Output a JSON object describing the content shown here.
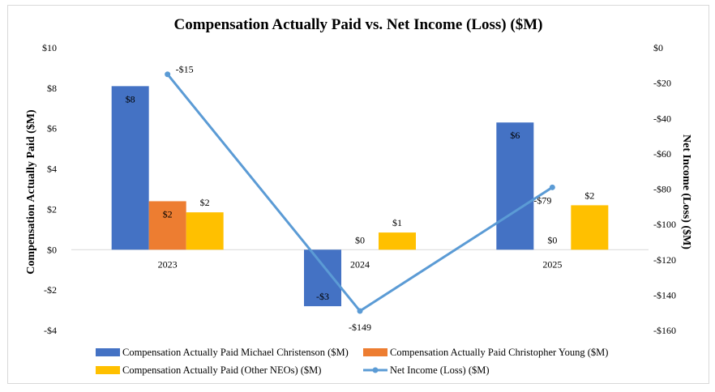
{
  "chart_data": {
    "type": "bar",
    "title": "Compensation Actually Paid vs. Net Income (Loss) ($M)",
    "categories": [
      "2023",
      "2024",
      "2025"
    ],
    "ylabel": "Compensation Actually Paid ($M)",
    "y2label": "Net Income (Loss) ($M)",
    "ylim": [
      -4,
      10
    ],
    "yticks": [
      10,
      8,
      6,
      4,
      2,
      0,
      -2,
      -4
    ],
    "ytick_labels": [
      "$10",
      "$8",
      "$6",
      "$4",
      "$2",
      "$0",
      "-$2",
      "-$4"
    ],
    "y2lim": [
      -160,
      0
    ],
    "y2ticks": [
      0,
      -20,
      -40,
      -60,
      -80,
      -100,
      -120,
      -140,
      -160
    ],
    "y2tick_labels": [
      "$0",
      "-$20",
      "-$40",
      "-$60",
      "-$80",
      "-$100",
      "-$120",
      "-$140",
      "-$160"
    ],
    "series": [
      {
        "name": "Compensation Actually Paid Michael Christenson ($M)",
        "kind": "bar",
        "axis": "left",
        "color": "#4472c4",
        "values": [
          8.1,
          -2.8,
          6.3
        ],
        "labels": [
          "$8",
          "-$3",
          "$6"
        ]
      },
      {
        "name": "Compensation Actually Paid Christopher Young ($M)",
        "kind": "bar",
        "axis": "left",
        "color": "#ed7d31",
        "values": [
          2.4,
          0,
          0
        ],
        "labels": [
          "$2",
          "$0",
          "$0"
        ]
      },
      {
        "name": "Compensation Actually Paid (Other NEOs) ($M)",
        "kind": "bar",
        "axis": "left",
        "color": "#ffc000",
        "values": [
          1.85,
          0.85,
          2.2
        ],
        "labels": [
          "$2",
          "$1",
          "$2"
        ]
      },
      {
        "name": "Net Income (Loss) ($M)",
        "kind": "line",
        "axis": "right",
        "color": "#5b9bd5",
        "values": [
          -15,
          -149,
          -79
        ],
        "labels": [
          "-$15",
          "-$149",
          "-$79"
        ]
      }
    ],
    "grid": false,
    "legend_position": "bottom"
  }
}
